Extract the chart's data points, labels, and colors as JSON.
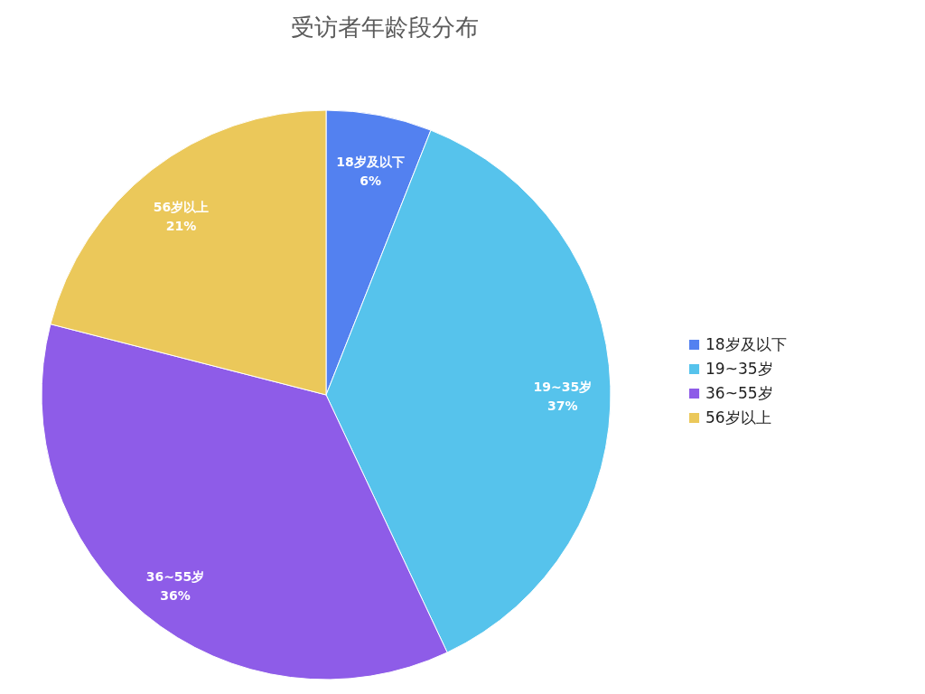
{
  "chart_data": {
    "type": "pie",
    "title": "受访者年龄段分布",
    "categories": [
      "18岁及以下",
      "19~35岁",
      "36~55岁",
      "56岁以上"
    ],
    "values": [
      6,
      37,
      36,
      21
    ],
    "value_labels": [
      "6%",
      "37%",
      "36%",
      "21%"
    ],
    "colors": [
      "#5381f0",
      "#56c3ec",
      "#8e5ce8",
      "#ebc85a"
    ],
    "legend": "right"
  }
}
